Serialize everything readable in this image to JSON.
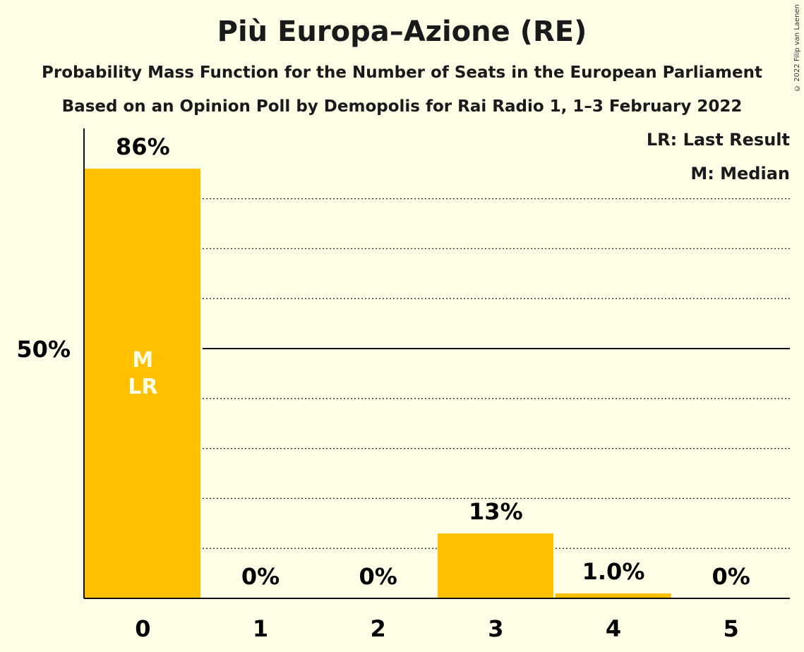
{
  "chart_data": {
    "type": "bar",
    "title": "Più Europa–Azione (RE)",
    "subtitle": "Probability Mass Function for the Number of Seats in the European Parliament",
    "subtitle2": "Based on an Opinion Poll by Demopolis for Rai Radio 1, 1–3 February 2022",
    "copyright": "© 2022 Filip van Laenen",
    "categories": [
      "0",
      "1",
      "2",
      "3",
      "4",
      "5"
    ],
    "values": [
      86,
      0,
      0,
      13,
      1.0,
      0
    ],
    "value_labels": [
      "86%",
      "0%",
      "0%",
      "13%",
      "1.0%",
      "0%"
    ],
    "ylim": [
      0,
      94
    ],
    "y_ticks": [
      {
        "value": 50,
        "label": "50%"
      }
    ],
    "gridlines": [
      10,
      20,
      30,
      40,
      60,
      70,
      80
    ],
    "median_index": 0,
    "last_result_index": 0,
    "bar_markers": {
      "median": "M",
      "last_result": "LR"
    },
    "legend": {
      "last_result": "LR: Last Result",
      "median": "M: Median"
    },
    "bar_color": "#FFC000",
    "legend_position": "top-right"
  }
}
